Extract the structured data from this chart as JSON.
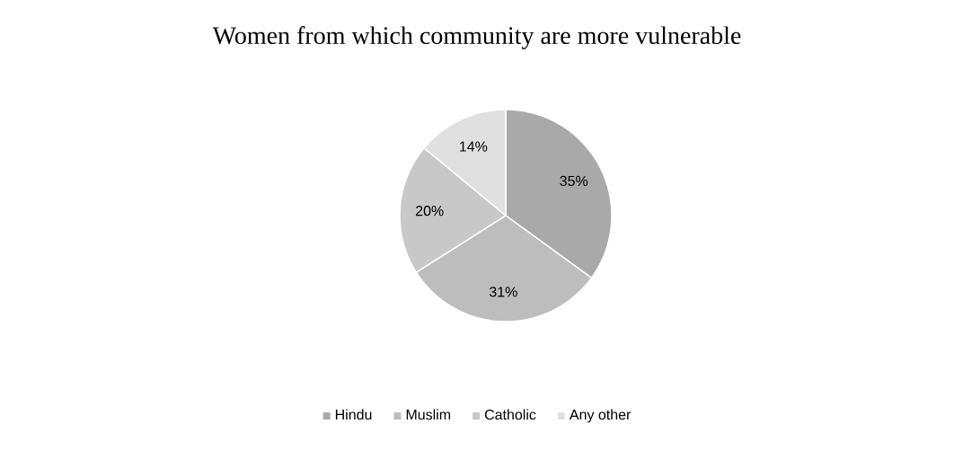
{
  "chart_data": {
    "type": "pie",
    "title": "Women from which community are more vulnerable",
    "categories": [
      "Hindu",
      "Muslim",
      "Catholic",
      "Any other"
    ],
    "values": [
      35,
      31,
      20,
      14
    ],
    "value_labels": [
      "35%",
      "31%",
      "20%",
      "14%"
    ],
    "colors": [
      "#a9a9a9",
      "#bdbdbd",
      "#c8c8c8",
      "#e0e0e0"
    ],
    "legend": "bottom"
  }
}
